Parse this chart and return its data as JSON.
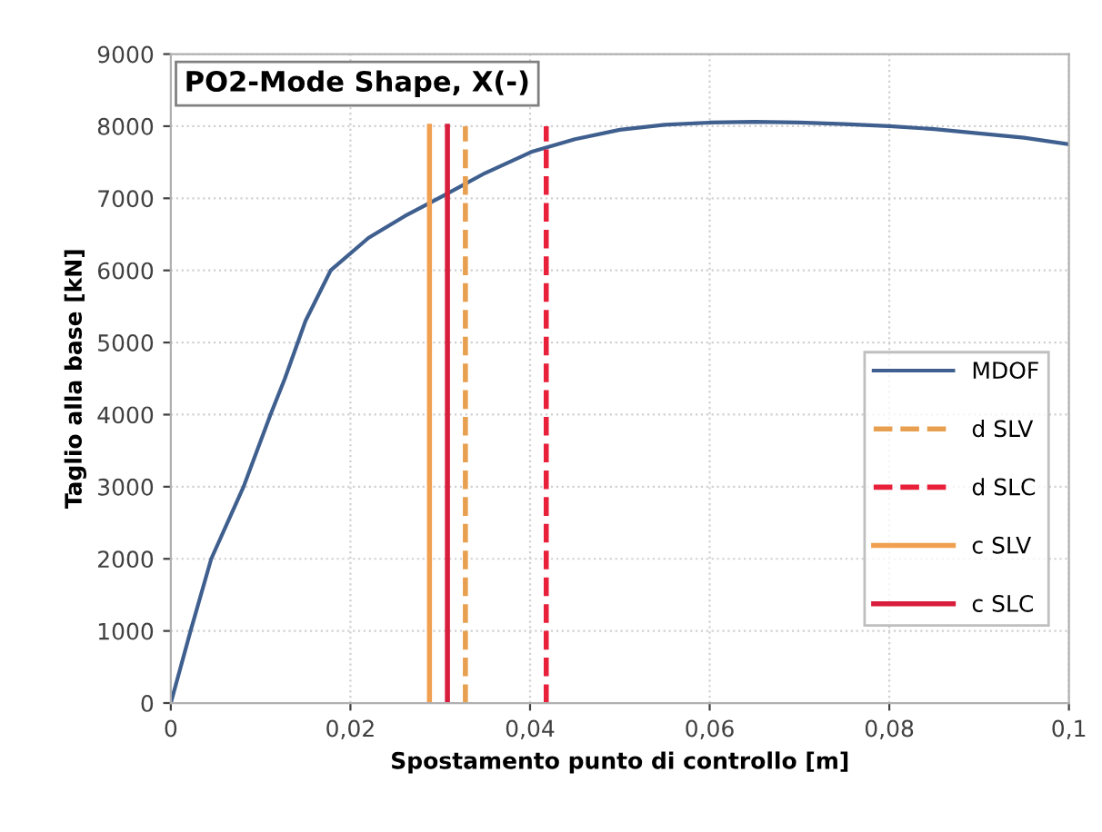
{
  "chart_data": {
    "type": "line",
    "xlabel": "Spostamento punto di controllo [m]",
    "ylabel": "Taglio alla base [kN]",
    "annotations": [
      "PO2-Mode Shape, X(-)"
    ],
    "xlim": [
      0,
      0.1
    ],
    "ylim": [
      0,
      9000
    ],
    "xticks": [
      0,
      {
        "value": 0.02,
        "label": "0,02"
      },
      {
        "value": 0.04,
        "label": "0,04"
      },
      {
        "value": 0.06,
        "label": "0,06"
      },
      {
        "value": 0.08,
        "label": "0,08"
      },
      {
        "value": 0.1,
        "label": "0,1"
      }
    ],
    "yticks": [
      0,
      1000,
      2000,
      3000,
      4000,
      5000,
      6000,
      7000,
      8000,
      9000
    ],
    "grid": true,
    "legend": "right",
    "series": [
      {
        "name": "MDOF",
        "color": "#3f5f8f",
        "line_style": "solid",
        "x": [
          0,
          0.0022,
          0.0045,
          0.0081,
          0.0111,
          0.0127,
          0.015,
          0.0178,
          0.022,
          0.026,
          0.0298,
          0.035,
          0.0403,
          0.045,
          0.05,
          0.055,
          0.06,
          0.065,
          0.07,
          0.075,
          0.08,
          0.085,
          0.09,
          0.095,
          0.1
        ],
        "values": [
          0,
          1000,
          2000,
          3000,
          4000,
          4500,
          5300,
          6000,
          6450,
          6750,
          7000,
          7350,
          7650,
          7820,
          7950,
          8020,
          8050,
          8060,
          8050,
          8030,
          8000,
          7960,
          7900,
          7840,
          7750
        ]
      },
      {
        "name": "d SLV",
        "color": "#e8a050",
        "line_style": "dashed",
        "x": [
          0.0328,
          0.0328
        ],
        "values": [
          0,
          8000
        ]
      },
      {
        "name": "d SLC",
        "color": "#e8203a",
        "line_style": "dashed",
        "x": [
          0.0418,
          0.0418
        ],
        "values": [
          0,
          8000
        ]
      },
      {
        "name": "c SLV",
        "color": "#f0a050",
        "line_style": "solid",
        "x": [
          0.0288,
          0.0288
        ],
        "values": [
          0,
          8000
        ]
      },
      {
        "name": "c SLC",
        "color": "#d81e3c",
        "line_style": "solid",
        "x": [
          0.0308,
          0.0308
        ],
        "values": [
          0,
          8000
        ]
      }
    ]
  }
}
